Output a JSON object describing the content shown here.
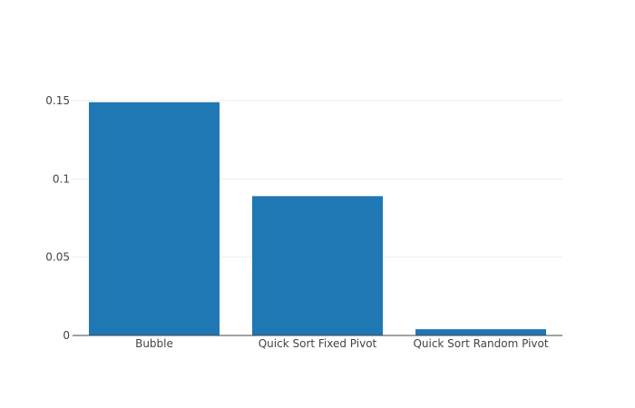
{
  "chart_data": {
    "type": "bar",
    "categories": [
      "Bubble",
      "Quick Sort Fixed Pivot",
      "Quick Sort Random Pivot"
    ],
    "values": [
      0.149,
      0.089,
      0.004
    ],
    "title": "",
    "xlabel": "",
    "ylabel": "",
    "ylim": [
      0,
      0.15
    ],
    "yticks": [
      0,
      0.05,
      0.1,
      0.15
    ],
    "ytick_labels": [
      "0",
      "0.05",
      "0.1",
      "0.15"
    ],
    "grid": true,
    "bar_color": "#1f77b4",
    "gridline_color": "#eeeeee",
    "axis_line_color": "#444444"
  }
}
